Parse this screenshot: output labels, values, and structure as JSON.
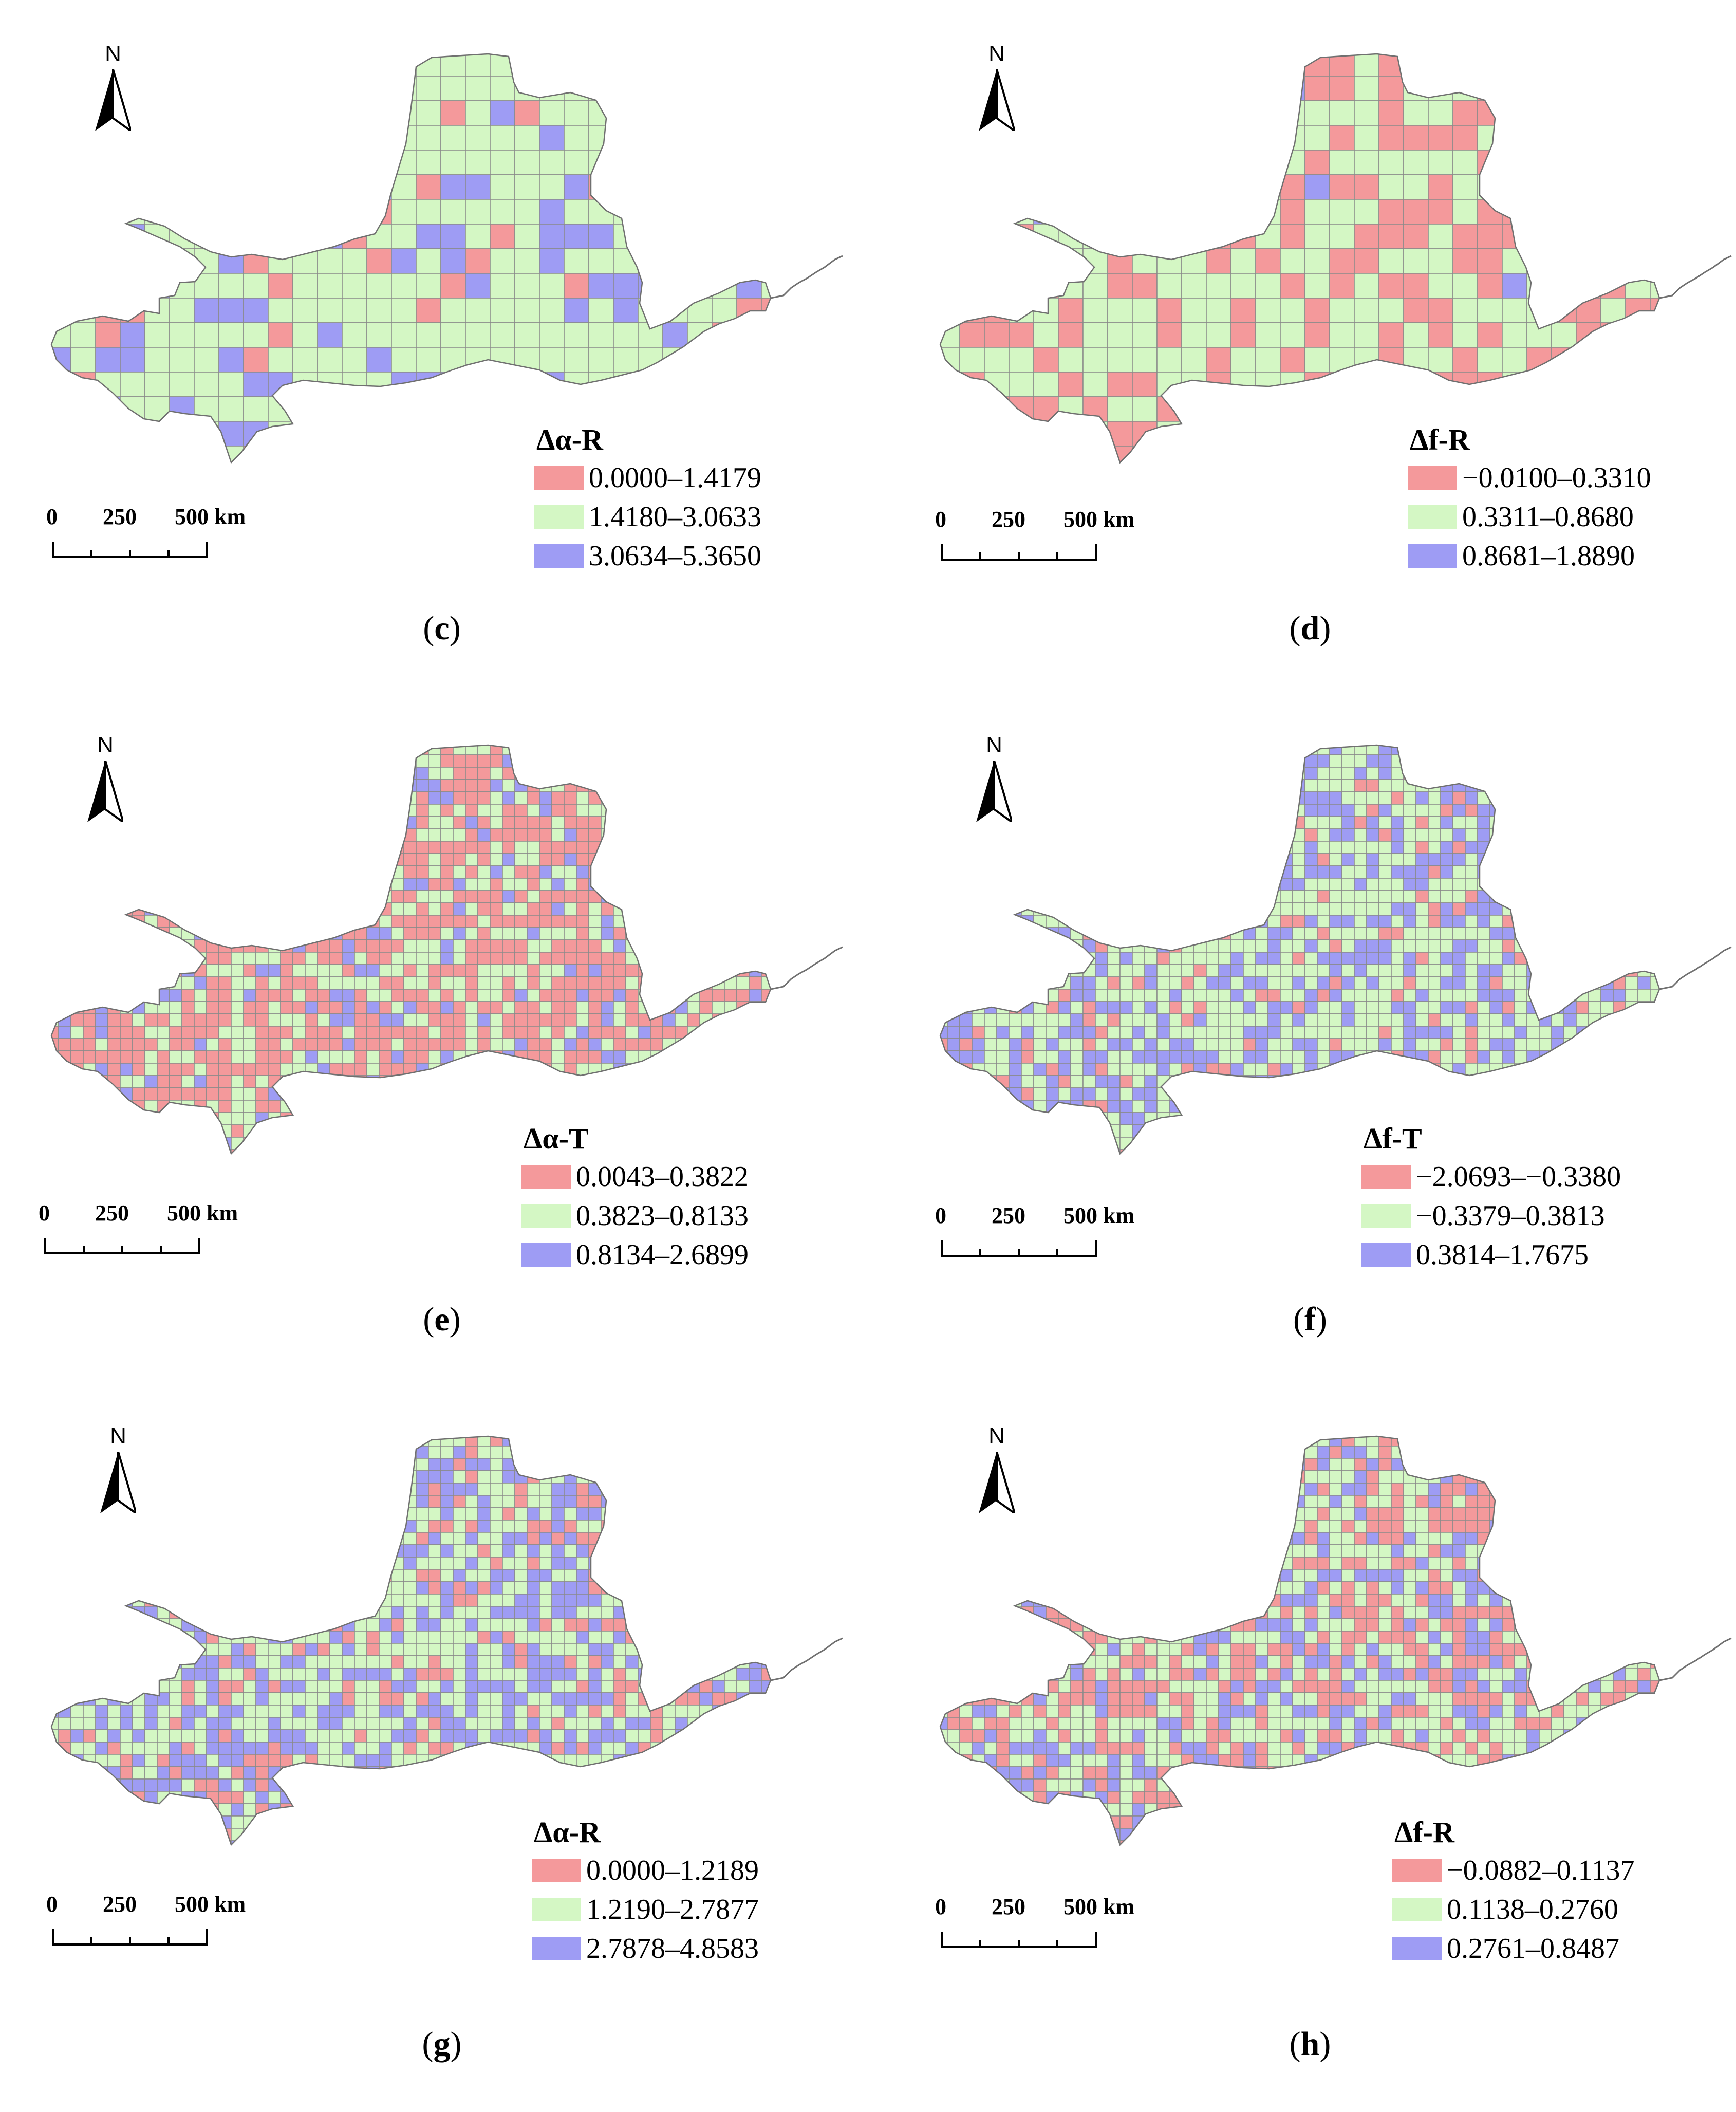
{
  "colors": {
    "low": "#f4999b",
    "mid": "#d4f7c4",
    "high": "#9e9cf4",
    "grid": "#8a8a8a",
    "outline": "#707070",
    "river": "#707070"
  },
  "north_label": "N",
  "scale": {
    "labels": [
      "0",
      "250",
      "500 km"
    ]
  },
  "panels": [
    {
      "id": "c",
      "caption": {
        "open": "(",
        "letter": "c",
        "close": ")"
      },
      "legend": {
        "title": "Δα-R",
        "items": [
          {
            "class": "low",
            "label": "0.0000–1.4179"
          },
          {
            "class": "mid",
            "label": "1.4180–3.0633"
          },
          {
            "class": "high",
            "label": "3.0634–5.3650"
          }
        ]
      },
      "pattern": {
        "cell": 48,
        "weights": [
          0.14,
          0.7,
          0.16
        ],
        "seed": 11
      }
    },
    {
      "id": "d",
      "caption": {
        "open": "(",
        "letter": "d",
        "close": ")"
      },
      "legend": {
        "title": "Δf-R",
        "items": [
          {
            "class": "low",
            "label": "−0.0100–0.3310"
          },
          {
            "class": "mid",
            "label": "0.3311–0.8680"
          },
          {
            "class": "high",
            "label": "0.8681–1.8890"
          }
        ]
      },
      "pattern": {
        "cell": 48,
        "weights": [
          0.4,
          0.57,
          0.03
        ],
        "seed": 23
      }
    },
    {
      "id": "e",
      "caption": {
        "open": "(",
        "letter": "e",
        "close": ")"
      },
      "legend": {
        "title": "Δα-T",
        "items": [
          {
            "class": "low",
            "label": "0.0043–0.3822"
          },
          {
            "class": "mid",
            "label": "0.3823–0.8133"
          },
          {
            "class": "high",
            "label": "0.8134–2.6899"
          }
        ]
      },
      "pattern": {
        "cell": 24,
        "weights": [
          0.52,
          0.33,
          0.15
        ],
        "seed": 37
      }
    },
    {
      "id": "f",
      "caption": {
        "open": "(",
        "letter": "f",
        "close": ")"
      },
      "legend": {
        "title": "Δf-T",
        "items": [
          {
            "class": "low",
            "label": "−2.0693–−0.3380"
          },
          {
            "class": "mid",
            "label": "−0.3379–0.3813"
          },
          {
            "class": "high",
            "label": "0.3814–1.7675"
          }
        ]
      },
      "pattern": {
        "cell": 24,
        "weights": [
          0.12,
          0.55,
          0.33
        ],
        "seed": 41
      }
    },
    {
      "id": "g",
      "caption": {
        "open": "(",
        "letter": "g",
        "close": ")"
      },
      "legend": {
        "title": "Δα-R",
        "items": [
          {
            "class": "low",
            "label": "0.0000–1.2189"
          },
          {
            "class": "mid",
            "label": "1.2190–2.7877"
          },
          {
            "class": "high",
            "label": "2.7878–4.8583"
          }
        ]
      },
      "pattern": {
        "cell": 24,
        "weights": [
          0.18,
          0.47,
          0.35
        ],
        "seed": 53
      }
    },
    {
      "id": "h",
      "caption": {
        "open": "(",
        "letter": "h",
        "close": ")"
      },
      "legend": {
        "title": "Δf-R",
        "items": [
          {
            "class": "low",
            "label": "−0.0882–0.1137"
          },
          {
            "class": "mid",
            "label": "0.1138–0.2760"
          },
          {
            "class": "high",
            "label": "0.2761–0.8487"
          }
        ]
      },
      "pattern": {
        "cell": 24,
        "weights": [
          0.33,
          0.44,
          0.23
        ],
        "seed": 67
      }
    }
  ]
}
